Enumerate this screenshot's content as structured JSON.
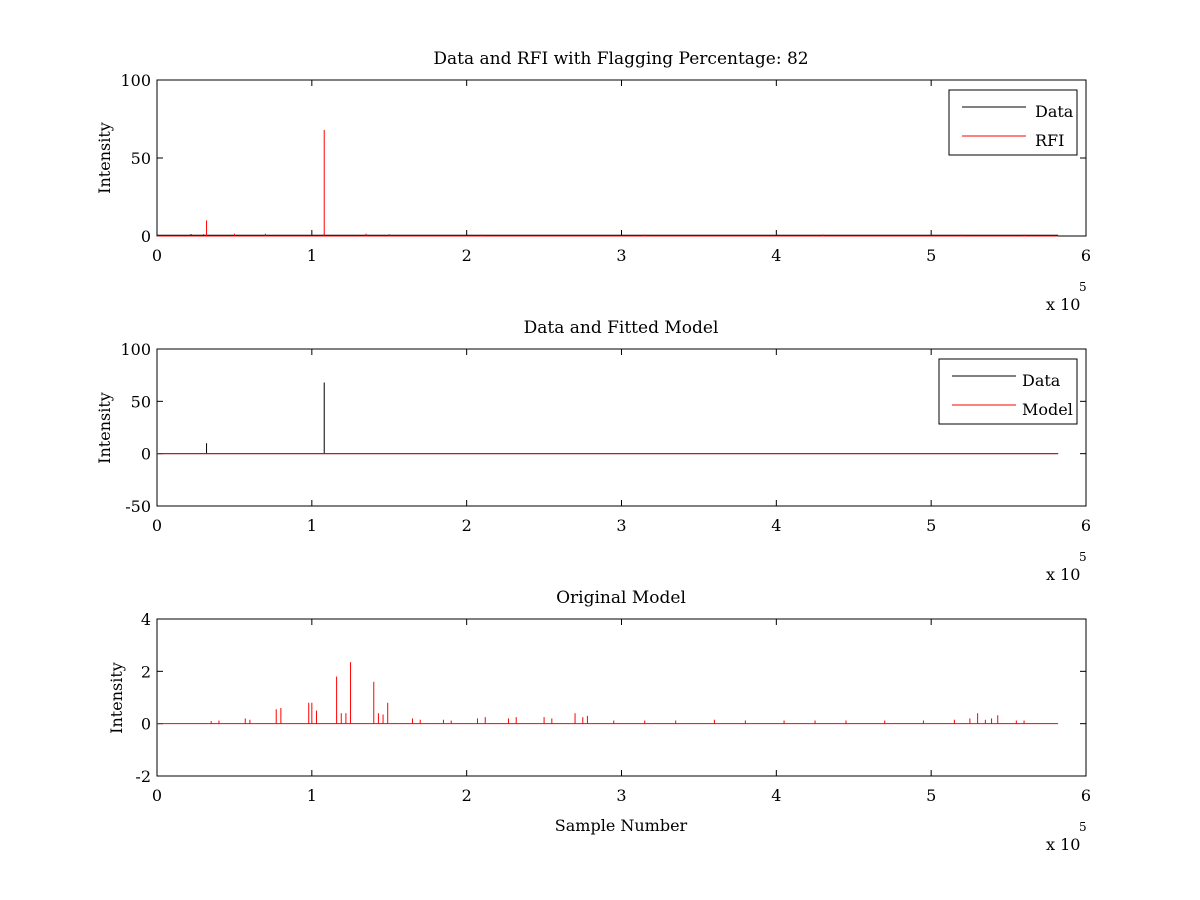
{
  "figure": {
    "background": "#ffffff",
    "exponent_base": "x 10",
    "exponent_power": "5"
  },
  "chart_data": [
    {
      "type": "line",
      "title": "Data and RFI with Flagging Percentage: 82",
      "xlabel": "",
      "ylabel": "Intensity",
      "xlim": [
        0,
        6
      ],
      "ylim": [
        0,
        100
      ],
      "x_scale_note": "x 10^5",
      "xticks": [
        "0",
        "1",
        "2",
        "3",
        "4",
        "5",
        "6"
      ],
      "yticks": [
        "0",
        "50",
        "100"
      ],
      "grid": false,
      "legend_position": "top-right",
      "series": [
        {
          "name": "Data",
          "color": "#000000",
          "baseline": 0.5,
          "spikes": [
            [
              0.22,
              1.2
            ],
            [
              0.3,
              1.0
            ],
            [
              1.08,
              1.0
            ]
          ]
        },
        {
          "name": "RFI",
          "color": "#ff0000",
          "baseline": 0.0,
          "spikes": [
            [
              0.32,
              10
            ],
            [
              1.08,
              68
            ],
            [
              0.5,
              1.5
            ],
            [
              0.7,
              1.5
            ],
            [
              1.35,
              1.5
            ],
            [
              1.5,
              1.2
            ],
            [
              2.1,
              1.0
            ],
            [
              3.15,
              1.0
            ],
            [
              4.3,
              1.0
            ],
            [
              5.2,
              1.0
            ],
            [
              5.6,
              1.0
            ]
          ]
        }
      ]
    },
    {
      "type": "line",
      "title": "Data and Fitted Model",
      "xlabel": "",
      "ylabel": "Intensity",
      "xlim": [
        0,
        6
      ],
      "ylim": [
        -50,
        100
      ],
      "x_scale_note": "x 10^5",
      "xticks": [
        "0",
        "1",
        "2",
        "3",
        "4",
        "5",
        "6"
      ],
      "yticks": [
        "-50",
        "0",
        "50",
        "100"
      ],
      "grid": false,
      "legend_position": "top-right",
      "series": [
        {
          "name": "Data",
          "color": "#000000",
          "baseline": 0.0,
          "spikes": [
            [
              0.32,
              10
            ],
            [
              1.08,
              68
            ]
          ]
        },
        {
          "name": "Model",
          "color": "#ff0000",
          "baseline": 0.0,
          "spikes": []
        }
      ]
    },
    {
      "type": "line",
      "title": "Original Model",
      "xlabel": "Sample Number",
      "ylabel": "Intensity",
      "xlim": [
        0,
        6
      ],
      "ylim": [
        -2,
        4
      ],
      "x_scale_note": "x 10^5",
      "xticks": [
        "0",
        "1",
        "2",
        "3",
        "4",
        "5",
        "6"
      ],
      "yticks": [
        "-2",
        "0",
        "2",
        "4"
      ],
      "grid": false,
      "legend_position": "none",
      "series": [
        {
          "color": "#ff0000",
          "baseline": 0.0,
          "spikes": [
            [
              0.35,
              0.1
            ],
            [
              0.4,
              0.12
            ],
            [
              0.57,
              0.2
            ],
            [
              0.6,
              0.15
            ],
            [
              0.77,
              0.55
            ],
            [
              0.8,
              0.6
            ],
            [
              0.98,
              0.8
            ],
            [
              1.0,
              0.8
            ],
            [
              1.03,
              0.5
            ],
            [
              1.16,
              1.8
            ],
            [
              1.19,
              0.4
            ],
            [
              1.22,
              0.4
            ],
            [
              1.25,
              2.35
            ],
            [
              1.4,
              1.6
            ],
            [
              1.43,
              0.4
            ],
            [
              1.46,
              0.35
            ],
            [
              1.49,
              0.8
            ],
            [
              1.65,
              0.2
            ],
            [
              1.7,
              0.15
            ],
            [
              1.85,
              0.15
            ],
            [
              1.9,
              0.12
            ],
            [
              2.07,
              0.2
            ],
            [
              2.12,
              0.25
            ],
            [
              2.27,
              0.2
            ],
            [
              2.32,
              0.25
            ],
            [
              2.5,
              0.25
            ],
            [
              2.55,
              0.2
            ],
            [
              2.7,
              0.4
            ],
            [
              2.75,
              0.25
            ],
            [
              2.78,
              0.3
            ],
            [
              2.95,
              0.12
            ],
            [
              3.15,
              0.12
            ],
            [
              3.35,
              0.12
            ],
            [
              3.6,
              0.15
            ],
            [
              3.8,
              0.12
            ],
            [
              4.05,
              0.12
            ],
            [
              4.25,
              0.12
            ],
            [
              4.45,
              0.12
            ],
            [
              4.7,
              0.12
            ],
            [
              4.95,
              0.12
            ],
            [
              5.15,
              0.15
            ],
            [
              5.25,
              0.2
            ],
            [
              5.3,
              0.4
            ],
            [
              5.35,
              0.15
            ],
            [
              5.39,
              0.2
            ],
            [
              5.43,
              0.32
            ],
            [
              5.55,
              0.12
            ],
            [
              5.6,
              0.12
            ]
          ]
        }
      ]
    }
  ]
}
